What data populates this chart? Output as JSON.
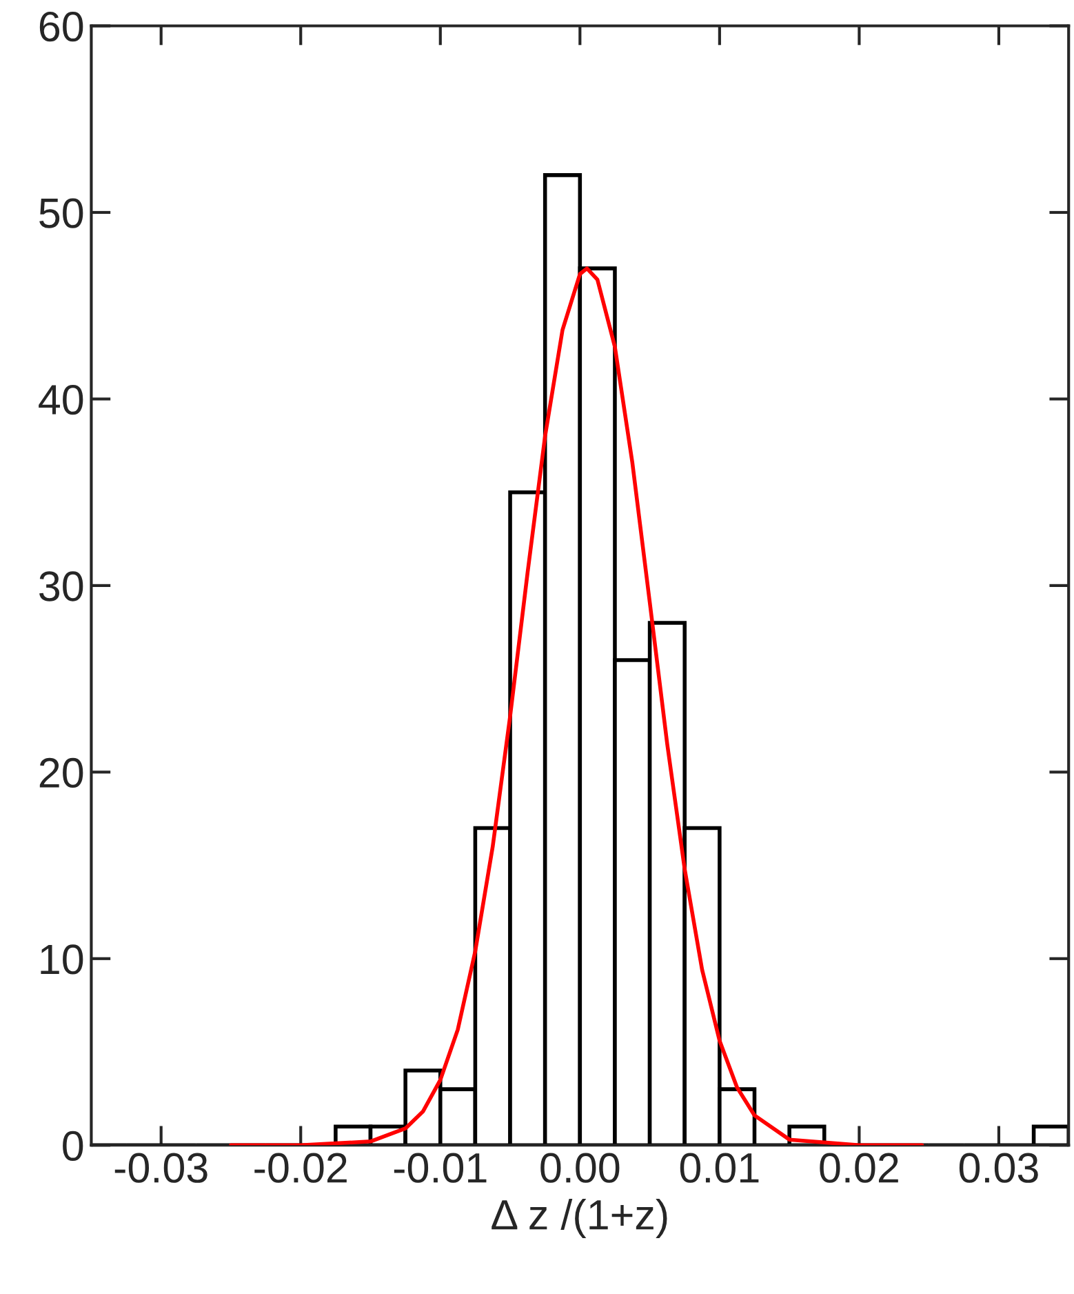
{
  "chart_data": {
    "type": "histogram",
    "xlabel": "Δ z /(1+z)",
    "xlim": [
      -0.035,
      0.035
    ],
    "ylim": [
      0,
      60
    ],
    "xticks": [
      {
        "value": -0.03,
        "label": "-0.03"
      },
      {
        "value": -0.02,
        "label": "-0.02"
      },
      {
        "value": -0.01,
        "label": "-0.01"
      },
      {
        "value": 0,
        "label": "0.00"
      },
      {
        "value": 0.01,
        "label": "0.01"
      },
      {
        "value": 0.02,
        "label": "0.02"
      },
      {
        "value": 0.03,
        "label": "0.03"
      }
    ],
    "yticks": [
      0,
      10,
      20,
      30,
      40,
      50,
      60
    ],
    "series": [
      {
        "color": "#000000",
        "bins": [
          -0.035,
          -0.0325,
          -0.03,
          -0.0275,
          -0.025,
          -0.0225,
          -0.02,
          -0.0175,
          -0.015,
          -0.0125,
          -0.01,
          -0.0075,
          -0.005,
          -0.0025,
          0,
          0.0025,
          0.005,
          0.0075,
          0.01,
          0.0125,
          0.015,
          0.0175,
          0.02,
          0.0225,
          0.025,
          0.0275,
          0.03,
          0.0325,
          0.035
        ],
        "values": [
          0,
          0,
          0,
          0,
          0,
          0,
          0,
          1,
          1,
          4,
          3,
          17,
          35,
          52,
          47,
          26,
          28,
          17,
          3,
          0,
          1,
          0,
          0,
          0,
          0,
          0,
          0,
          1
        ]
      },
      {
        "type": "line",
        "color": "#ff0000",
        "x": [
          -0.025,
          -0.02,
          -0.015,
          -0.0125,
          -0.01125,
          -0.01,
          -0.00875,
          -0.0075,
          -0.00625,
          -0.005,
          -0.00375,
          -0.0025,
          -0.00125,
          0,
          0.0005,
          0.00125,
          0.0025,
          0.00375,
          0.005,
          0.00625,
          0.0075,
          0.00875,
          0.01,
          0.01125,
          0.0125,
          0.015,
          0.02,
          0.0245
        ],
        "values": [
          0,
          0,
          0.2,
          0.9,
          1.8,
          3.5,
          6.2,
          10.4,
          16,
          23,
          30.7,
          38,
          43.7,
          46.7,
          47,
          46.4,
          42.8,
          36.6,
          29.1,
          21.5,
          14.8,
          9.4,
          5.6,
          3.1,
          1.6,
          0.3,
          0,
          0
        ]
      }
    ]
  }
}
